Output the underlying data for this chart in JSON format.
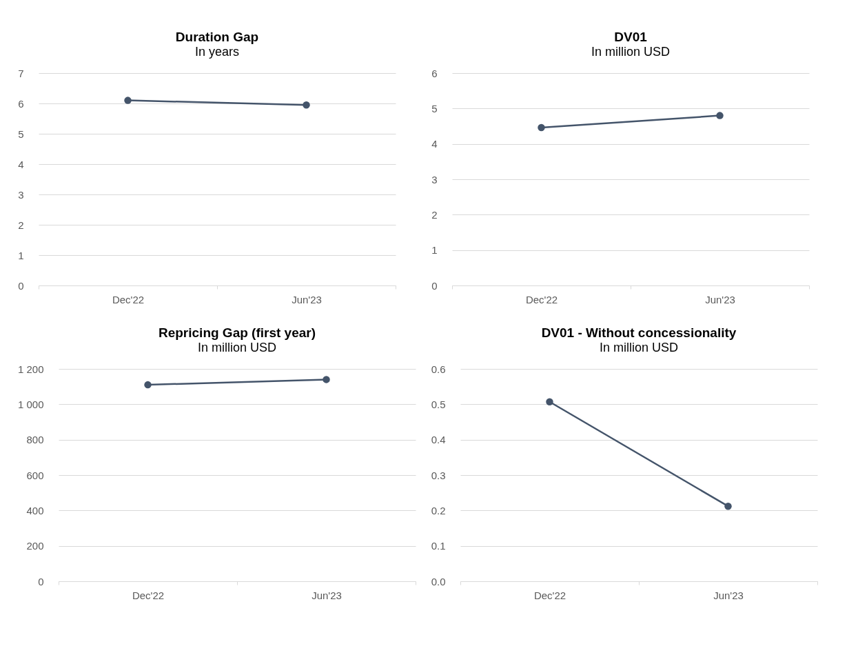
{
  "chart_data": [
    {
      "type": "line",
      "title": "Duration Gap",
      "subtitle": "In years",
      "categories": [
        "Dec'22",
        "Jun'23"
      ],
      "series": [
        {
          "color": "#44546a",
          "values": [
            6.1,
            5.95
          ]
        }
      ],
      "ylim": [
        0,
        7
      ],
      "yticks": [
        0,
        1,
        2,
        3,
        4,
        5,
        6,
        7
      ],
      "grid": "y",
      "marker": "circle"
    },
    {
      "type": "line",
      "title": "DV01",
      "subtitle": "In million USD",
      "categories": [
        "Dec'22",
        "Jun'23"
      ],
      "series": [
        {
          "color": "#44546a",
          "values": [
            4.46,
            4.8
          ]
        }
      ],
      "ylim": [
        0,
        6
      ],
      "yticks": [
        0,
        1,
        2,
        3,
        4,
        5,
        6
      ],
      "grid": "y",
      "marker": "circle"
    },
    {
      "type": "line",
      "title": "Repricing Gap (first year)",
      "subtitle": "In million USD",
      "categories": [
        "Dec'22",
        "Jun'23"
      ],
      "series": [
        {
          "color": "#44546a",
          "values": [
            1110,
            1140
          ]
        }
      ],
      "ylim": [
        0,
        1200
      ],
      "yticks": [
        0,
        200,
        400,
        600,
        800,
        {
          "value": 1000,
          "label": "1 000"
        },
        {
          "value": 1200,
          "label": "1 200"
        }
      ],
      "grid": "y",
      "marker": "circle"
    },
    {
      "type": "line",
      "title": "DV01 - Without concessionality",
      "subtitle": "In million USD",
      "categories": [
        "Dec'22",
        "Jun'23"
      ],
      "series": [
        {
          "color": "#44546a",
          "values": [
            0.507,
            0.212
          ]
        }
      ],
      "ylim": [
        0,
        0.6
      ],
      "yticks": [
        {
          "value": 0,
          "label": "0.0"
        },
        0.1,
        0.2,
        0.3,
        0.4,
        0.5,
        0.6
      ],
      "grid": "y",
      "marker": "circle"
    }
  ]
}
